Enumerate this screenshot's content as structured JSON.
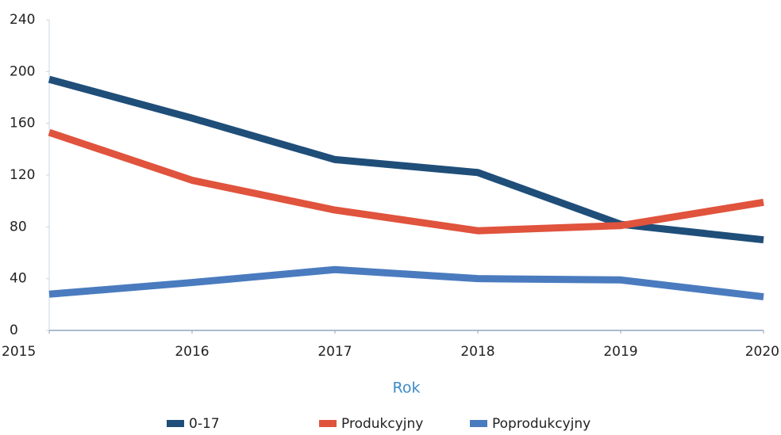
{
  "chart_data": {
    "type": "line",
    "x": [
      2015,
      2016,
      2017,
      2018,
      2019,
      2020
    ],
    "xlim": [
      2015,
      2020
    ],
    "xticks": [
      2015,
      2016,
      2017,
      2018,
      2019,
      2020
    ],
    "ylim": [
      0,
      240
    ],
    "yticks": [
      0,
      40,
      80,
      120,
      160,
      200,
      240
    ],
    "xlabel": "Rok",
    "grid": false,
    "legend": "bottom",
    "series": [
      {
        "name": "0-17",
        "color": "#1f4e79",
        "values": [
          194,
          164,
          132,
          122,
          82,
          70
        ]
      },
      {
        "name": "Produkcyjny",
        "color": "#e0533d",
        "values": [
          153,
          116,
          93,
          77,
          81,
          99
        ]
      },
      {
        "name": "Poprodukcyjny",
        "color": "#4a7bbf",
        "values": [
          28,
          37,
          47,
          40,
          39,
          26
        ]
      }
    ]
  }
}
